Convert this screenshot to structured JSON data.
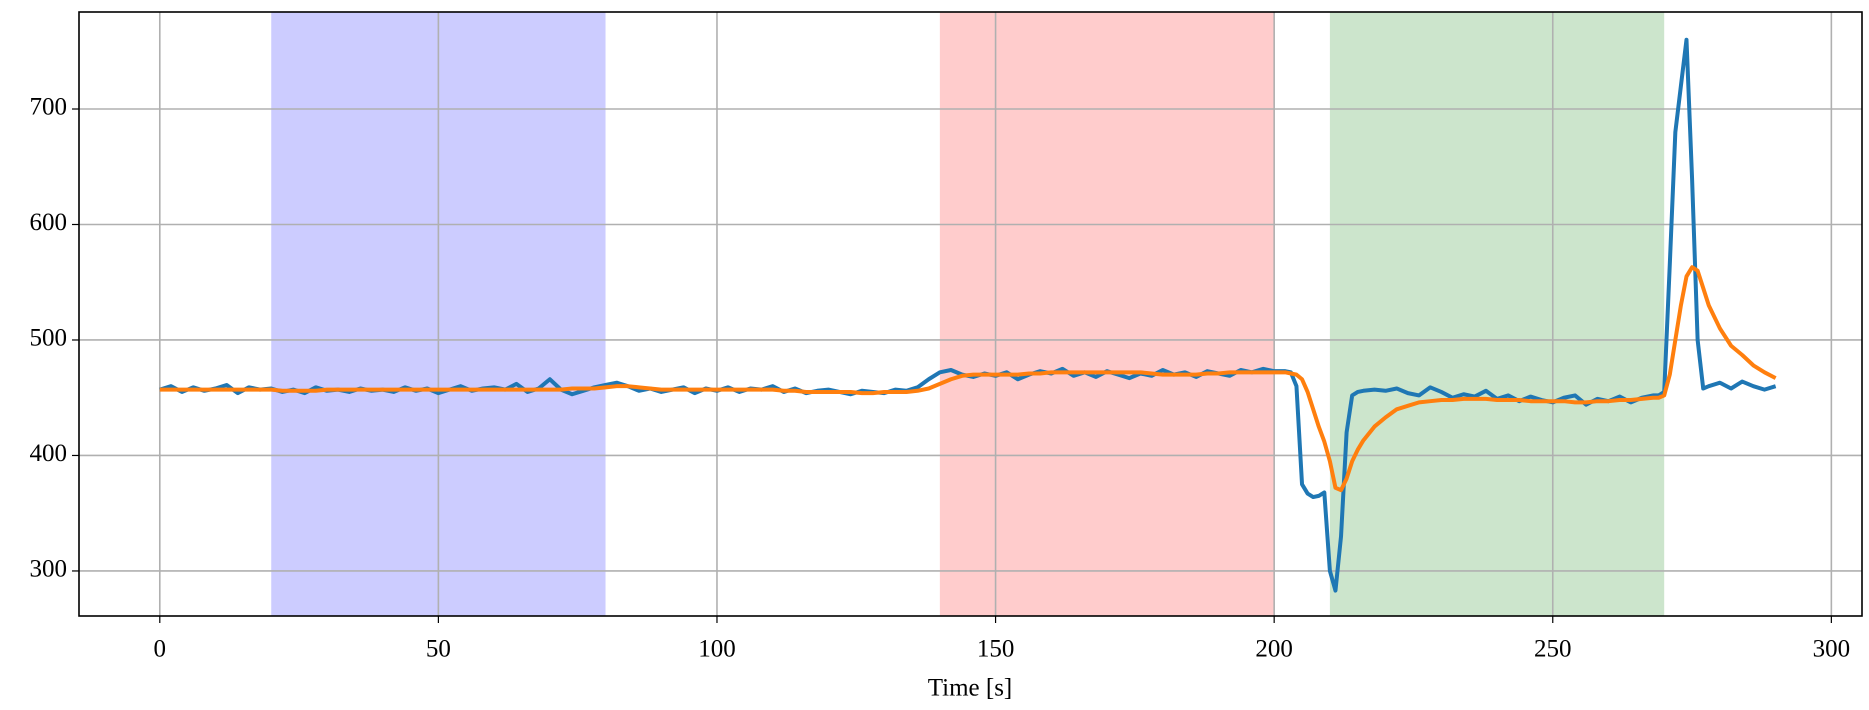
{
  "chart_data": {
    "type": "line",
    "x_label": "Time [s]",
    "x": [
      0,
      2,
      4,
      6,
      8,
      10,
      12,
      14,
      16,
      18,
      20,
      22,
      24,
      26,
      28,
      30,
      32,
      34,
      36,
      38,
      40,
      42,
      44,
      46,
      48,
      50,
      52,
      54,
      56,
      58,
      60,
      62,
      64,
      66,
      68,
      70,
      72,
      74,
      76,
      78,
      80,
      82,
      84,
      86,
      88,
      90,
      92,
      94,
      96,
      98,
      100,
      102,
      104,
      106,
      108,
      110,
      112,
      114,
      116,
      118,
      120,
      122,
      124,
      126,
      128,
      130,
      132,
      134,
      136,
      138,
      140,
      142,
      144,
      146,
      148,
      150,
      152,
      154,
      156,
      158,
      160,
      162,
      164,
      166,
      168,
      170,
      172,
      174,
      176,
      178,
      180,
      182,
      184,
      186,
      188,
      190,
      192,
      194,
      196,
      198,
      200,
      202,
      203,
      204,
      205,
      206,
      207,
      208,
      209,
      210,
      211,
      212,
      213,
      214,
      215,
      216,
      218,
      220,
      222,
      224,
      226,
      228,
      230,
      232,
      234,
      236,
      238,
      240,
      242,
      244,
      246,
      248,
      250,
      252,
      254,
      256,
      258,
      260,
      262,
      264,
      266,
      268,
      269,
      270,
      271,
      272,
      273,
      274,
      275,
      276,
      277,
      278,
      280,
      282,
      284,
      286,
      288,
      290
    ],
    "series": [
      {
        "color": "#1f77b4",
        "values": [
          457,
          460,
          455,
          459,
          456,
          458,
          461,
          454,
          459,
          457,
          458,
          455,
          457,
          454,
          459,
          456,
          457,
          455,
          458,
          456,
          457,
          455,
          459,
          456,
          458,
          454,
          457,
          460,
          456,
          458,
          459,
          457,
          462,
          455,
          458,
          466,
          457,
          453,
          456,
          459,
          461,
          463,
          460,
          456,
          458,
          455,
          457,
          459,
          454,
          458,
          456,
          459,
          455,
          458,
          457,
          460,
          455,
          458,
          454,
          456,
          457,
          455,
          453,
          456,
          455,
          454,
          457,
          456,
          459,
          466,
          472,
          474,
          470,
          468,
          471,
          469,
          472,
          466,
          470,
          473,
          471,
          475,
          469,
          472,
          468,
          473,
          470,
          467,
          471,
          469,
          474,
          470,
          472,
          468,
          473,
          471,
          469,
          474,
          472,
          475,
          473,
          473,
          472,
          460,
          375,
          367,
          364,
          365,
          368,
          300,
          283,
          330,
          420,
          452,
          455,
          456,
          457,
          456,
          458,
          454,
          452,
          459,
          455,
          450,
          453,
          451,
          456,
          449,
          452,
          447,
          451,
          448,
          446,
          450,
          452,
          444,
          449,
          447,
          451,
          446,
          450,
          452,
          452,
          455,
          565,
          680,
          720,
          760,
          640,
          500,
          458,
          460,
          463,
          458,
          464,
          460,
          457,
          460
        ]
      },
      {
        "color": "#ff7f0e",
        "values": [
          457,
          457,
          457,
          457,
          457,
          457,
          457,
          457,
          457,
          457,
          457,
          456,
          456,
          456,
          456,
          457,
          457,
          457,
          457,
          457,
          457,
          457,
          457,
          457,
          457,
          457,
          457,
          457,
          457,
          457,
          457,
          457,
          457,
          457,
          457,
          457,
          457,
          458,
          458,
          458,
          459,
          460,
          460,
          459,
          458,
          457,
          457,
          457,
          457,
          457,
          457,
          457,
          457,
          457,
          457,
          457,
          456,
          456,
          455,
          455,
          455,
          455,
          455,
          454,
          454,
          455,
          455,
          455,
          456,
          458,
          462,
          466,
          469,
          470,
          470,
          470,
          470,
          470,
          471,
          471,
          472,
          472,
          472,
          472,
          472,
          472,
          472,
          472,
          472,
          471,
          470,
          470,
          470,
          470,
          471,
          471,
          472,
          472,
          472,
          472,
          472,
          472,
          471,
          470,
          466,
          455,
          440,
          425,
          412,
          395,
          372,
          370,
          380,
          395,
          405,
          413,
          425,
          433,
          440,
          443,
          446,
          447,
          448,
          448,
          449,
          449,
          449,
          448,
          448,
          448,
          447,
          447,
          447,
          447,
          446,
          446,
          447,
          447,
          448,
          448,
          449,
          450,
          450,
          452,
          470,
          500,
          530,
          555,
          563,
          560,
          545,
          530,
          510,
          495,
          487,
          478,
          472,
          467
        ]
      }
    ],
    "spans": [
      {
        "x0": 20,
        "x1": 80,
        "color": "#ccccff"
      },
      {
        "x0": 140,
        "x1": 200,
        "color": "#ffcccc"
      },
      {
        "x0": 210,
        "x1": 270,
        "color": "#cce5cc"
      }
    ],
    "xlim": [
      -14.5,
      305.5
    ],
    "ylim": [
      261,
      784
    ],
    "xticks": [
      0,
      50,
      100,
      150,
      200,
      250,
      300
    ],
    "yticks": [
      300,
      400,
      500,
      600,
      700
    ],
    "grid": true
  }
}
